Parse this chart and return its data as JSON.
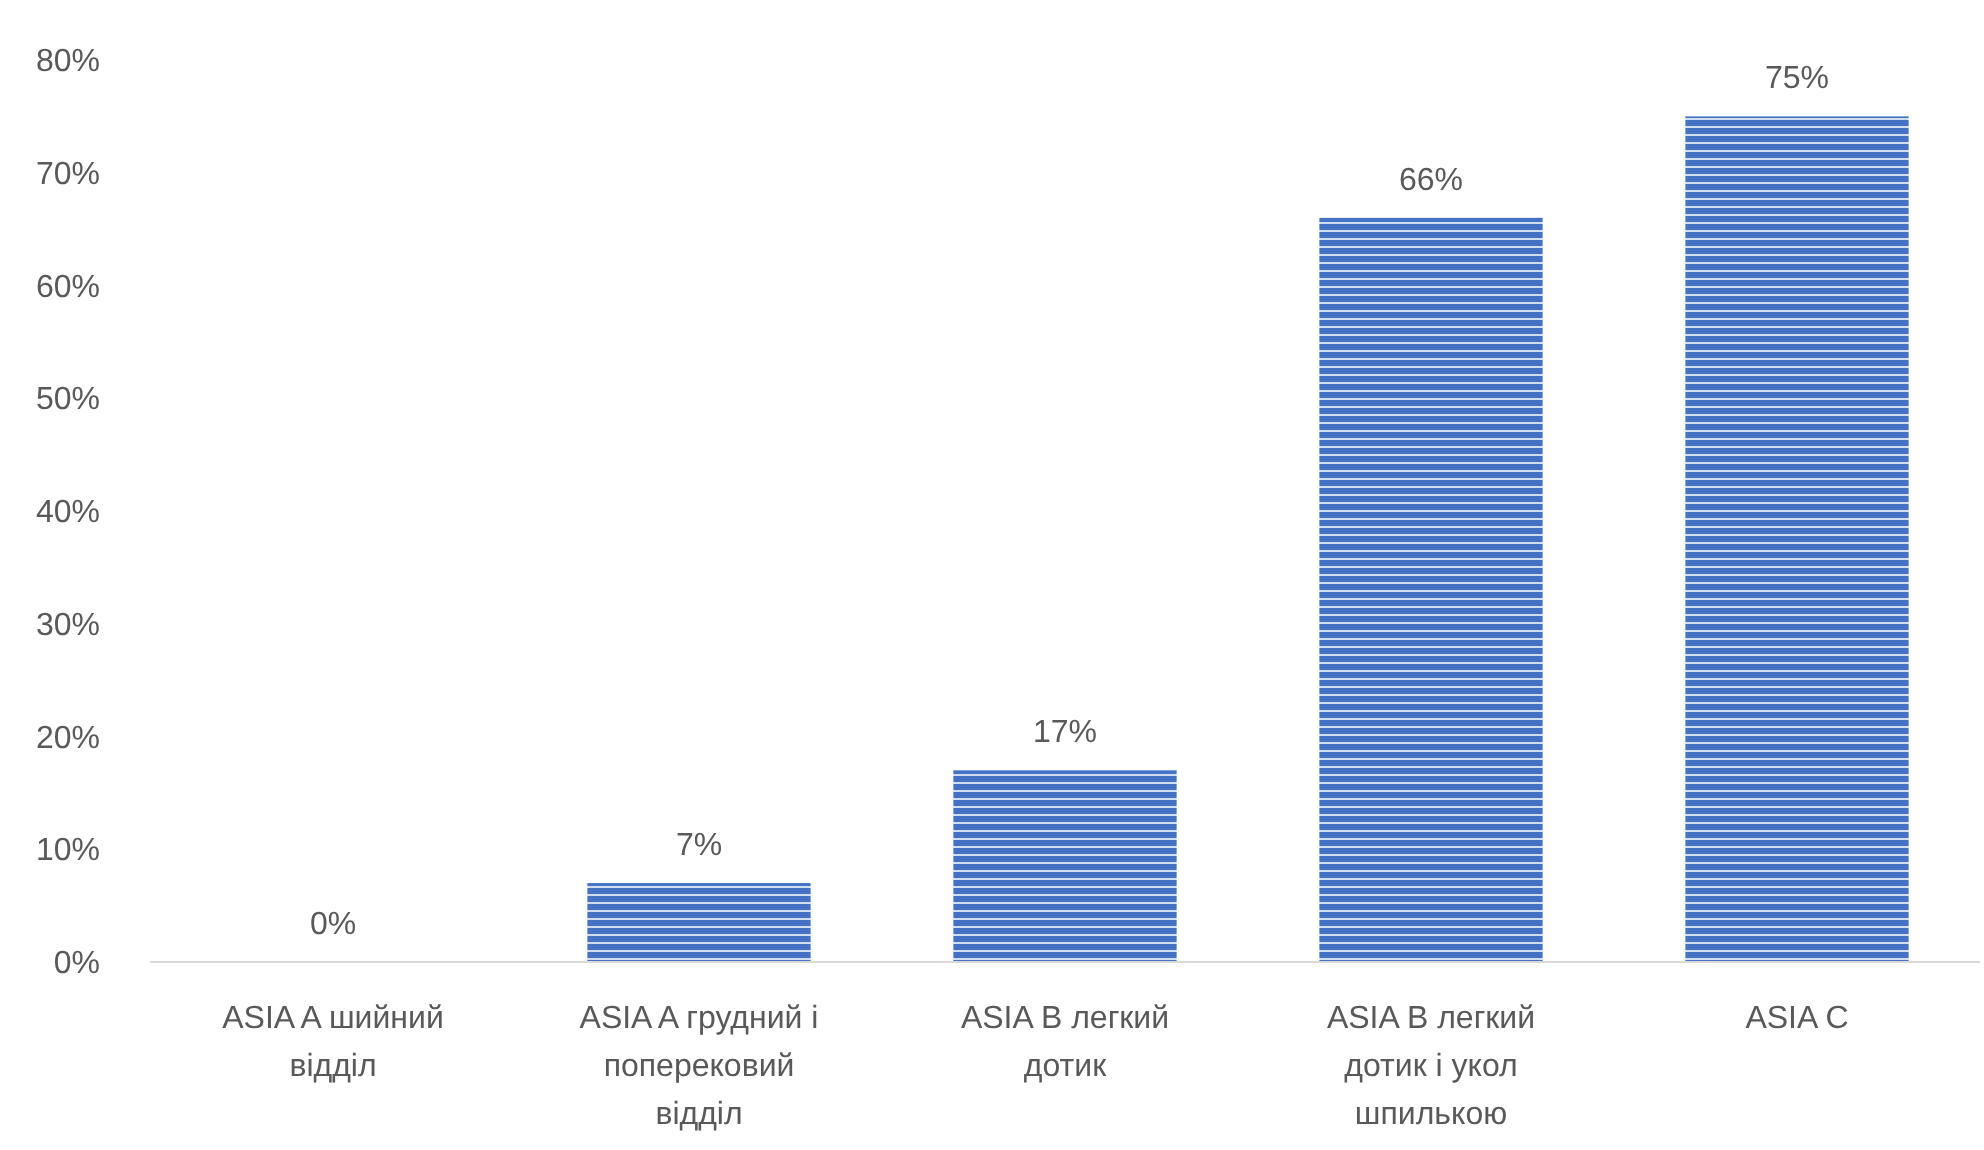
{
  "chart_data": {
    "type": "bar",
    "categories": [
      "ASIA A шийний відділ",
      "ASIA A грудний і поперековий відділ",
      "ASIA B легкий дотик",
      "ASIA B легкий дотик і укол шпилькою",
      "ASIA C"
    ],
    "values": [
      0,
      7,
      17,
      66,
      75
    ],
    "value_labels": [
      "0%",
      "7%",
      "17%",
      "66%",
      "75%"
    ],
    "color": "#4472c4",
    "ylim": [
      0,
      80
    ],
    "yticks": [
      {
        "value": 0,
        "label": "0%"
      },
      {
        "value": 10,
        "label": "10%"
      },
      {
        "value": 20,
        "label": "20%"
      },
      {
        "value": 30,
        "label": "30%"
      },
      {
        "value": 40,
        "label": "40%"
      },
      {
        "value": 50,
        "label": "50%"
      },
      {
        "value": 60,
        "label": "60%"
      },
      {
        "value": 70,
        "label": "70%"
      },
      {
        "value": 80,
        "label": "80%"
      }
    ],
    "grid": false
  }
}
